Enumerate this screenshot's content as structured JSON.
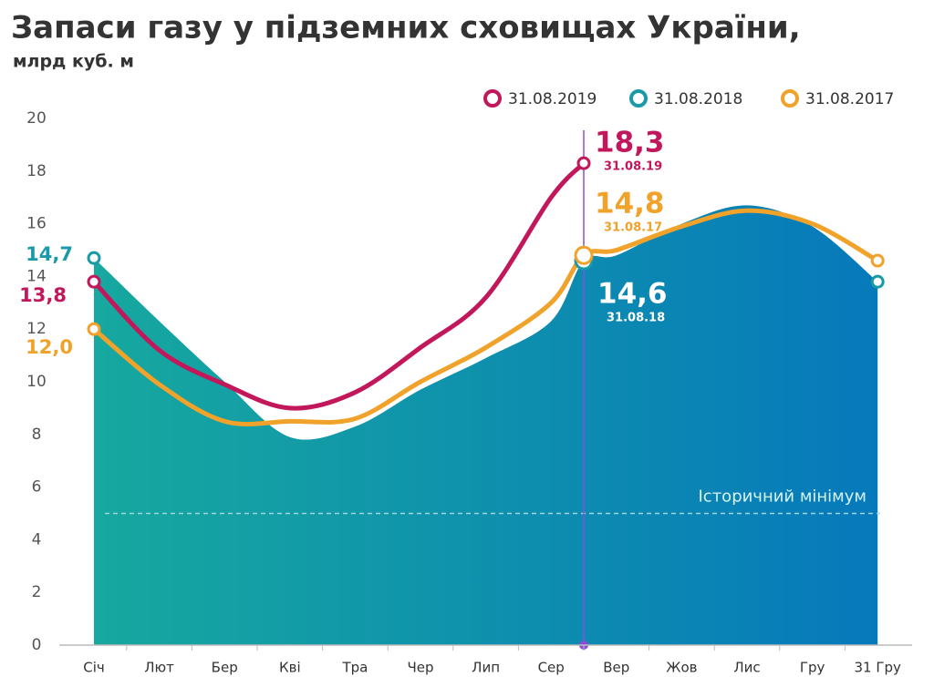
{
  "chart_data": {
    "type": "line",
    "title": "Запаси газу у підземних сховищах України,",
    "subtitle": "млрд куб. м",
    "categories": [
      "Січ",
      "Лют",
      "Бер",
      "Кві",
      "Тра",
      "Чер",
      "Лип",
      "Сер",
      "Вер",
      "Жов",
      "Лис",
      "Гру",
      "31 Гру"
    ],
    "ylim": [
      0,
      20
    ],
    "yticks": [
      0,
      2,
      4,
      6,
      8,
      10,
      12,
      14,
      16,
      18,
      20
    ],
    "reference_line": {
      "value": 5,
      "label": "Історичний мінімум"
    },
    "series": [
      {
        "name": "31.08.2019",
        "color": "#c2185b",
        "date_label": "31.08.19",
        "x": [
          0,
          1,
          2,
          3,
          4,
          5,
          6,
          7,
          7.5
        ],
        "values": [
          13.8,
          11.2,
          9.9,
          9.0,
          9.6,
          11.3,
          13.2,
          17.0,
          18.3
        ],
        "value_labels": [
          "13,8",
          null,
          null,
          null,
          null,
          null,
          null,
          null,
          "18,3"
        ]
      },
      {
        "name": "31.08.2018",
        "color": "#1a9aa8",
        "area": true,
        "date_label": "31.08.18",
        "x": [
          0,
          1,
          2,
          3,
          4,
          5,
          6,
          7,
          7.5,
          8,
          9,
          10,
          11,
          12
        ],
        "values": [
          14.7,
          12.3,
          10.0,
          7.9,
          8.3,
          9.7,
          10.9,
          12.3,
          14.6,
          14.8,
          16.0,
          16.7,
          15.9,
          13.8
        ],
        "value_labels": [
          "14,7",
          null,
          null,
          null,
          null,
          null,
          null,
          null,
          "14,6",
          null,
          null,
          null,
          null,
          null
        ]
      },
      {
        "name": "31.08.2017",
        "color": "#f0a22a",
        "date_label": "31.08.17",
        "x": [
          0,
          1,
          2,
          3,
          4,
          5,
          6,
          7,
          7.5,
          8,
          9,
          10,
          11,
          12
        ],
        "values": [
          12.0,
          9.9,
          8.5,
          8.5,
          8.6,
          10.0,
          11.3,
          13.0,
          14.8,
          15.0,
          15.9,
          16.5,
          16.0,
          14.6
        ],
        "value_labels": [
          "12,0",
          null,
          null,
          null,
          null,
          null,
          null,
          null,
          "14,8",
          null,
          null,
          null,
          null,
          null
        ]
      }
    ]
  }
}
